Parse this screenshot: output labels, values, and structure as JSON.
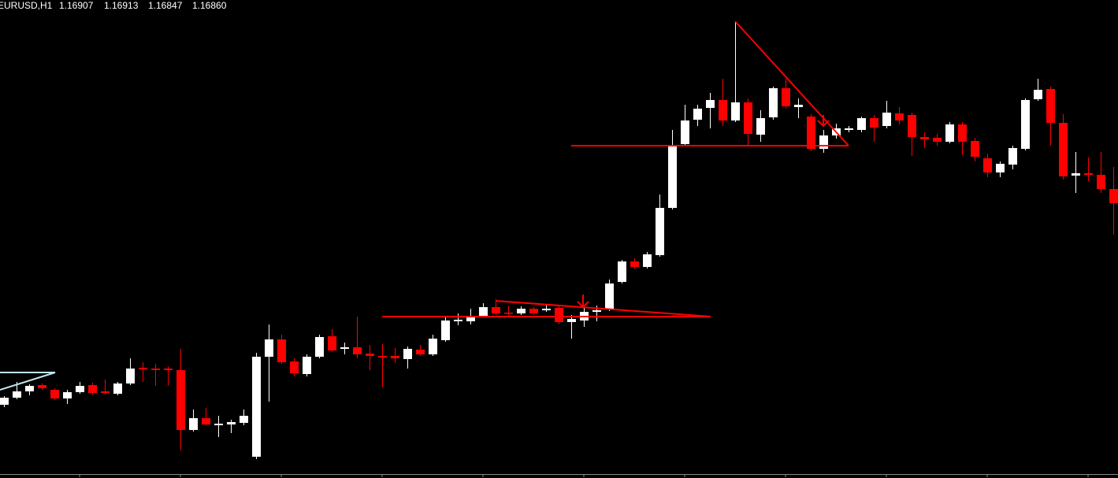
{
  "chart_data": {
    "type": "candlestick",
    "title": "EURUSD,H1",
    "quote": [
      "1.16907",
      "1.16913",
      "1.16847",
      "1.16860"
    ],
    "up_color": "#ffffff",
    "down_color": "#ff0000",
    "ylim": [
      1.164,
      1.17
    ],
    "open": [
      1.16486,
      1.16495,
      1.16503,
      1.16511,
      1.16505,
      1.16494,
      1.16502,
      1.16511,
      1.16503,
      1.165,
      1.16513,
      1.16533,
      1.16532,
      1.16532,
      1.1653,
      1.16454,
      1.16469,
      1.1646,
      1.16461,
      1.16463,
      1.1642,
      1.16547,
      1.16569,
      1.16541,
      1.16525,
      1.16547,
      1.16573,
      1.16557,
      1.16559,
      1.16551,
      1.16548,
      1.16548,
      1.16544,
      1.16556,
      1.1655,
      1.16568,
      1.16592,
      1.16592,
      1.16599,
      1.1661,
      1.16603,
      1.16602,
      1.16608,
      1.16606,
      1.16609,
      1.16591,
      1.16593,
      1.16604,
      1.16607,
      1.16642,
      1.16668,
      1.16661,
      1.16676,
      1.16736,
      1.16817,
      1.16848,
      1.16863,
      1.16873,
      1.16847,
      1.1687,
      1.16829,
      1.16851,
      1.16888,
      1.16864,
      1.16852,
      1.16811,
      1.16828,
      1.16835,
      1.16835,
      1.1685,
      1.1684,
      1.16856,
      1.16854,
      1.16826,
      1.16825,
      1.1682,
      1.16842,
      1.16821,
      1.16799,
      1.16781,
      1.16791,
      1.16811,
      1.16874,
      1.16887,
      1.16844,
      1.16777,
      1.1678,
      1.16778,
      1.1676
    ],
    "high": [
      1.16497,
      1.16515,
      1.16512,
      1.16513,
      1.16507,
      1.16505,
      1.16515,
      1.16514,
      1.16518,
      1.16515,
      1.16545,
      1.1654,
      1.16538,
      1.16535,
      1.16557,
      1.1648,
      1.16482,
      1.16472,
      1.16467,
      1.1648,
      1.16552,
      1.16588,
      1.16575,
      1.16545,
      1.1655,
      1.16575,
      1.16582,
      1.16565,
      1.16598,
      1.16562,
      1.16563,
      1.16558,
      1.1656,
      1.16562,
      1.16575,
      1.16598,
      1.16602,
      1.16608,
      1.16615,
      1.1662,
      1.16612,
      1.16611,
      1.1661,
      1.16613,
      1.16612,
      1.166,
      1.1661,
      1.16612,
      1.16645,
      1.1667,
      1.16672,
      1.1668,
      1.16753,
      1.16835,
      1.16867,
      1.16867,
      1.16882,
      1.169,
      1.16973,
      1.16875,
      1.1686,
      1.1689,
      1.169,
      1.16875,
      1.16855,
      1.16835,
      1.16843,
      1.1684,
      1.16852,
      1.16854,
      1.16872,
      1.16864,
      1.16857,
      1.16832,
      1.1683,
      1.16845,
      1.16845,
      1.16825,
      1.16805,
      1.16795,
      1.16815,
      1.16875,
      1.169,
      1.1689,
      1.16855,
      1.16807,
      1.168,
      1.16807,
      1.16788
    ],
    "low": [
      1.16483,
      1.16493,
      1.16498,
      1.16505,
      1.16492,
      1.16487,
      1.165,
      1.16499,
      1.16499,
      1.16498,
      1.16511,
      1.16515,
      1.1651,
      1.1651,
      1.16428,
      1.16452,
      1.1646,
      1.16445,
      1.1645,
      1.1646,
      1.16417,
      1.1649,
      1.16538,
      1.16522,
      1.16522,
      1.16545,
      1.16553,
      1.1655,
      1.16545,
      1.1653,
      1.16508,
      1.16539,
      1.16532,
      1.16548,
      1.16548,
      1.16566,
      1.16587,
      1.16588,
      1.16597,
      1.166,
      1.166,
      1.166,
      1.166,
      1.16604,
      1.16588,
      1.1657,
      1.16585,
      1.16592,
      1.16605,
      1.1664,
      1.16659,
      1.16659,
      1.16674,
      1.16734,
      1.16815,
      1.1684,
      1.16837,
      1.1684,
      1.16845,
      1.16815,
      1.1682,
      1.16848,
      1.16862,
      1.1685,
      1.16808,
      1.16806,
      1.16824,
      1.16832,
      1.16832,
      1.1682,
      1.16837,
      1.16842,
      1.16802,
      1.16812,
      1.16815,
      1.16818,
      1.16803,
      1.16795,
      1.16775,
      1.16775,
      1.16785,
      1.16809,
      1.16872,
      1.16815,
      1.16772,
      1.16755,
      1.1677,
      1.16755,
      1.16702
    ],
    "close": [
      1.16495,
      1.16503,
      1.1651,
      1.16507,
      1.16494,
      1.16502,
      1.1651,
      1.16501,
      1.16501,
      1.16513,
      1.16532,
      1.16531,
      1.1653,
      1.1653,
      1.16454,
      1.16469,
      1.16461,
      1.16462,
      1.16464,
      1.16472,
      1.16547,
      1.16569,
      1.1654,
      1.16526,
      1.16547,
      1.16572,
      1.16555,
      1.16559,
      1.1655,
      1.16548,
      1.16546,
      1.16545,
      1.16557,
      1.1655,
      1.1657,
      1.16593,
      1.16594,
      1.16598,
      1.1661,
      1.16602,
      1.16602,
      1.16608,
      1.16602,
      1.16608,
      1.16591,
      1.16595,
      1.16604,
      1.16606,
      1.1664,
      1.16668,
      1.16661,
      1.16677,
      1.16736,
      1.16816,
      1.16847,
      1.16862,
      1.16873,
      1.16847,
      1.1687,
      1.1683,
      1.1685,
      1.16888,
      1.16865,
      1.16867,
      1.16811,
      1.16828,
      1.16837,
      1.16837,
      1.1685,
      1.16838,
      1.16857,
      1.16847,
      1.16826,
      1.16823,
      1.1682,
      1.16842,
      1.1682,
      1.16801,
      1.16781,
      1.16792,
      1.16812,
      1.16873,
      1.16886,
      1.16844,
      1.16776,
      1.1678,
      1.16778,
      1.1676,
      1.16742
    ]
  }
}
